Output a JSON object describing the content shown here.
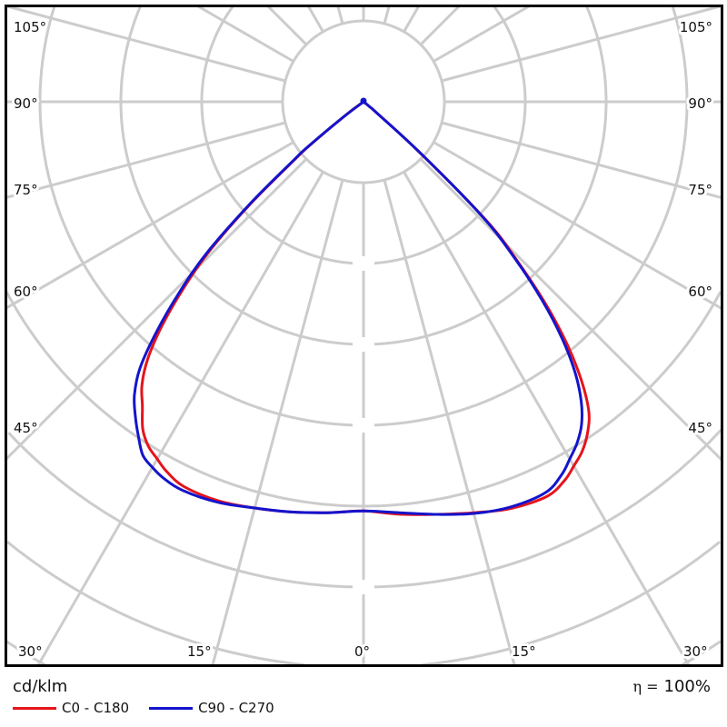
{
  "chart_data": {
    "type": "polar",
    "unit": "cd/klm",
    "efficiency_symbol": "η =",
    "efficiency_value": "100%",
    "angle_labels": {
      "left": [
        "105°",
        "90°",
        "75°",
        "60°",
        "45°"
      ],
      "right": [
        "105°",
        "90°",
        "75°",
        "60°",
        "45°"
      ],
      "bottom": [
        "30°",
        "15°",
        "0°",
        "15°",
        "30°"
      ]
    },
    "angle_grid_step_deg": 15,
    "grid": true,
    "legend_placement": "bottom-left",
    "angles": [
      0,
      5,
      10,
      15,
      20,
      25,
      28,
      30,
      32,
      34,
      36,
      38,
      40,
      42,
      44,
      46,
      48,
      50,
      51,
      53,
      56
    ],
    "series": [
      {
        "name": "C0 - C180",
        "color": "#e5141c",
        "right_values": [
          5.08,
          5.12,
          5.18,
          5.26,
          5.35,
          5.38,
          5.3,
          5.2,
          5.1,
          4.95,
          4.74,
          4.38,
          3.92,
          3.37,
          2.74,
          2.1,
          0.9,
          0.2,
          0.1,
          0.03,
          0
        ],
        "left_values": [
          5.06,
          5.1,
          5.15,
          5.2,
          5.25,
          5.25,
          5.18,
          5.1,
          5.02,
          4.88,
          4.65,
          4.45,
          4.15,
          3.72,
          3.2,
          2.62,
          1.85,
          1.1,
          0.85,
          0.3,
          0
        ]
      },
      {
        "name": "C90 - C270",
        "color": "#1414cc",
        "right_values": [
          5.06,
          5.1,
          5.18,
          5.27,
          5.33,
          5.33,
          5.22,
          5.1,
          4.98,
          4.82,
          4.58,
          4.25,
          3.82,
          3.3,
          2.7,
          2.05,
          0.95,
          0.2,
          0.1,
          0.03,
          0
        ],
        "left_values": [
          5.06,
          5.1,
          5.15,
          5.2,
          5.27,
          5.3,
          5.27,
          5.22,
          5.15,
          4.98,
          4.8,
          4.6,
          4.3,
          3.82,
          3.28,
          2.7,
          1.9,
          1.15,
          0.9,
          0.3,
          0
        ]
      }
    ]
  }
}
